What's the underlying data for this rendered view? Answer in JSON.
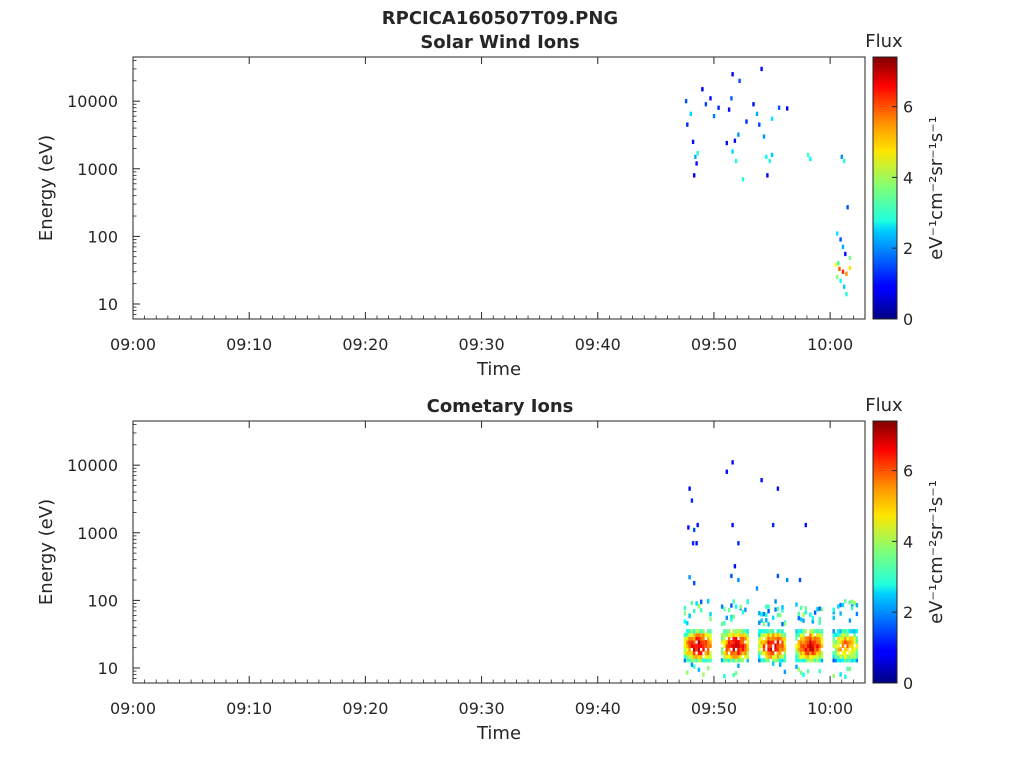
{
  "figure_title": "RPCICA160507T09.PNG",
  "colorbar": {
    "title": "Flux",
    "label": "eV⁻¹cm⁻²sr⁻¹s⁻¹",
    "ticks": [
      0,
      2,
      4,
      6
    ],
    "range": [
      0,
      7.4
    ],
    "colormap": "jet"
  },
  "chart_data": [
    {
      "type": "heatmap",
      "title": "Solar Wind Ions",
      "xlabel": "Time",
      "ylabel": "Energy (eV)",
      "x_ticks": [
        "09:00",
        "09:10",
        "09:20",
        "09:30",
        "09:40",
        "09:50",
        "10:00"
      ],
      "x_range_minutes_after_0900": [
        0,
        63
      ],
      "y_scale": "log",
      "y_range": [
        6,
        45000
      ],
      "y_ticks": [
        10,
        100,
        1000,
        10000
      ],
      "points": [
        [
          47.5,
          10000,
          1.5
        ],
        [
          47.6,
          4500,
          1.2
        ],
        [
          47.9,
          6500,
          2.5
        ],
        [
          48.1,
          2500,
          1.0
        ],
        [
          48.3,
          1500,
          2.2
        ],
        [
          48.4,
          1200,
          1.0
        ],
        [
          48.5,
          1700,
          3.0
        ],
        [
          48.2,
          800,
          0.8
        ],
        [
          48.9,
          15000,
          0.8
        ],
        [
          49.2,
          9000,
          1.4
        ],
        [
          49.6,
          11000,
          1.0
        ],
        [
          49.9,
          6000,
          1.8
        ],
        [
          50.3,
          8000,
          1.2
        ],
        [
          51.0,
          2400,
          1.0
        ],
        [
          51.2,
          7500,
          1.0
        ],
        [
          51.5,
          1800,
          2.5
        ],
        [
          51.7,
          2600,
          1.0
        ],
        [
          51.8,
          1300,
          3.0
        ],
        [
          51.4,
          11000,
          1.6
        ],
        [
          51.5,
          25000,
          0.8
        ],
        [
          52.1,
          20000,
          1.5
        ],
        [
          52.0,
          3200,
          2.0
        ],
        [
          52.4,
          700,
          3.0
        ],
        [
          52.7,
          5000,
          1.2
        ],
        [
          53.3,
          9000,
          1.0
        ],
        [
          53.6,
          6500,
          2.2
        ],
        [
          53.8,
          4500,
          1.4
        ],
        [
          54.0,
          30000,
          1.0
        ],
        [
          54.2,
          3000,
          2.0
        ],
        [
          54.4,
          1500,
          2.8
        ],
        [
          54.7,
          1300,
          3.0
        ],
        [
          54.9,
          1600,
          2.4
        ],
        [
          54.5,
          800,
          0.8
        ],
        [
          54.9,
          5500,
          2.6
        ],
        [
          55.5,
          8000,
          1.5
        ],
        [
          56.2,
          7800,
          0.8
        ],
        [
          58.0,
          1600,
          3.2
        ],
        [
          58.2,
          1400,
          2.8
        ],
        [
          60.9,
          1500,
          2.0
        ],
        [
          61.1,
          1300,
          3.0
        ],
        [
          60.5,
          110,
          2.6
        ],
        [
          60.8,
          90,
          1.5
        ],
        [
          61.0,
          70,
          2.2
        ],
        [
          61.2,
          55,
          1.0
        ],
        [
          61.4,
          270,
          1.5
        ],
        [
          61.6,
          48,
          3.6
        ],
        [
          60.4,
          38,
          4.6
        ],
        [
          60.7,
          33,
          5.8
        ],
        [
          61.0,
          30,
          6.2
        ],
        [
          61.3,
          28,
          5.4
        ],
        [
          61.6,
          34,
          4.8
        ],
        [
          60.5,
          25,
          3.8
        ],
        [
          60.8,
          22,
          2.8
        ],
        [
          61.1,
          18,
          2.4
        ],
        [
          61.3,
          14,
          3.0
        ],
        [
          60.6,
          40,
          3.2
        ]
      ]
    },
    {
      "type": "heatmap",
      "title": "Cometary Ions",
      "xlabel": "Time",
      "ylabel": "Energy (eV)",
      "x_ticks": [
        "09:00",
        "09:10",
        "09:20",
        "09:30",
        "09:40",
        "09:50",
        "10:00"
      ],
      "x_range_minutes_after_0900": [
        0,
        63
      ],
      "y_scale": "log",
      "y_range": [
        6,
        45000
      ],
      "y_ticks": [
        10,
        100,
        1000,
        10000
      ],
      "points": [
        [
          47.8,
          4500,
          1.0
        ],
        [
          48.0,
          3000,
          1.2
        ],
        [
          47.7,
          1200,
          1.0
        ],
        [
          48.2,
          1100,
          1.5
        ],
        [
          48.5,
          1300,
          1.0
        ],
        [
          48.1,
          700,
          1.2
        ],
        [
          48.4,
          700,
          1.0
        ],
        [
          47.8,
          220,
          2.0
        ],
        [
          48.2,
          180,
          1.5
        ],
        [
          51.0,
          8000,
          1.0
        ],
        [
          51.5,
          11000,
          1.0
        ],
        [
          51.5,
          1300,
          1.0
        ],
        [
          52.0,
          700,
          1.2
        ],
        [
          51.7,
          320,
          1.0
        ],
        [
          51.4,
          230,
          1.5
        ],
        [
          52.0,
          200,
          2.0
        ],
        [
          54.0,
          6000,
          1.0
        ],
        [
          55.4,
          4500,
          1.0
        ],
        [
          55.0,
          1300,
          1.2
        ],
        [
          55.4,
          230,
          1.5
        ],
        [
          56.2,
          200,
          2.0
        ],
        [
          57.8,
          1300,
          1.0
        ],
        [
          53.6,
          150,
          2.0
        ],
        [
          57.3,
          200,
          1.5
        ]
      ],
      "bands": [
        {
          "x_start": 47.4,
          "x_end": 49.8,
          "y_low": 13,
          "y_high": 35,
          "peak": 6.8
        },
        {
          "x_start": 50.6,
          "x_end": 53.0,
          "y_low": 13,
          "y_high": 35,
          "peak": 6.8
        },
        {
          "x_start": 53.8,
          "x_end": 56.2,
          "y_low": 13,
          "y_high": 35,
          "peak": 6.6
        },
        {
          "x_start": 57.0,
          "x_end": 59.4,
          "y_low": 13,
          "y_high": 35,
          "peak": 6.6
        },
        {
          "x_start": 60.2,
          "x_end": 62.4,
          "y_low": 13,
          "y_high": 35,
          "peak": 5.6
        }
      ]
    }
  ]
}
